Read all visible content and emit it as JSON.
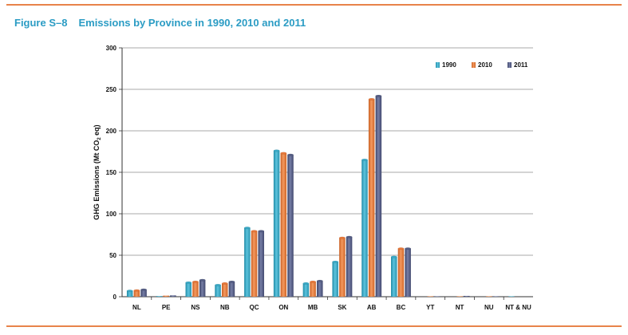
{
  "figure": {
    "number": "Figure S–8",
    "title": "Emissions by Province in 1990, 2010 and 2011"
  },
  "chart_data": {
    "type": "bar",
    "ylabel_main": "GHG Emissions (Mt CO",
    "ylabel_sub": "2",
    "ylabel_end": " eq)",
    "xlabel": "",
    "ylim": [
      0,
      300
    ],
    "yticks": [
      "0",
      "50",
      "100",
      "150",
      "200",
      "250",
      "300"
    ],
    "grid": true,
    "legend_position": "top-right",
    "categories": [
      "NL",
      "PE",
      "NS",
      "NB",
      "QC",
      "ON",
      "MB",
      "SK",
      "AB",
      "BC",
      "YT",
      "NT",
      "NU",
      "NT & NU"
    ],
    "series": [
      {
        "name": "1990",
        "color": "#3aa9c6",
        "values": [
          7,
          0.8,
          17,
          14,
          83,
          176,
          16,
          42,
          165,
          48,
          0,
          0,
          0,
          0.4
        ]
      },
      {
        "name": "2010",
        "color": "#e8783a",
        "values": [
          7.5,
          1.3,
          18,
          16,
          79,
          173,
          18,
          71,
          238,
          58,
          0.4,
          0.5,
          0.3,
          0
        ]
      },
      {
        "name": "2011",
        "color": "#555e85",
        "values": [
          8.5,
          1.6,
          20,
          18,
          79,
          171,
          19,
          72,
          242,
          58,
          0.4,
          1,
          0.3,
          0
        ]
      }
    ]
  }
}
